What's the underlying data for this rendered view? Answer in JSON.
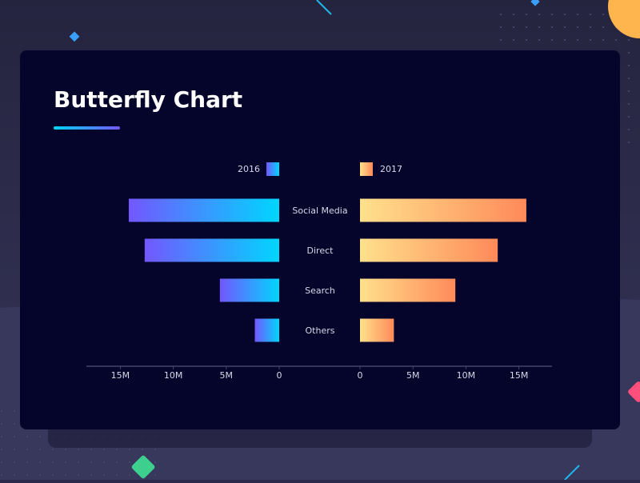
{
  "chart_data": {
    "type": "butterfly",
    "title": "Butterfly Chart",
    "categories": [
      "Social Media",
      "Direct",
      "Search",
      "Others"
    ],
    "series": [
      {
        "name": "2016",
        "color": [
          "#7357ff",
          "#00d6ff"
        ],
        "values": [
          14.2,
          12.7,
          5.6,
          2.3
        ]
      },
      {
        "name": "2017",
        "color": [
          "#ffe18c",
          "#ff8a5a"
        ],
        "values": [
          15.7,
          13.0,
          9.0,
          3.2
        ]
      }
    ],
    "xlim": [
      0,
      18.2
    ],
    "xticks": [
      0,
      {
        "value": 5,
        "label": "5M"
      },
      {
        "value": 10,
        "label": "10M"
      },
      {
        "value": 15,
        "label": "15M"
      }
    ]
  }
}
